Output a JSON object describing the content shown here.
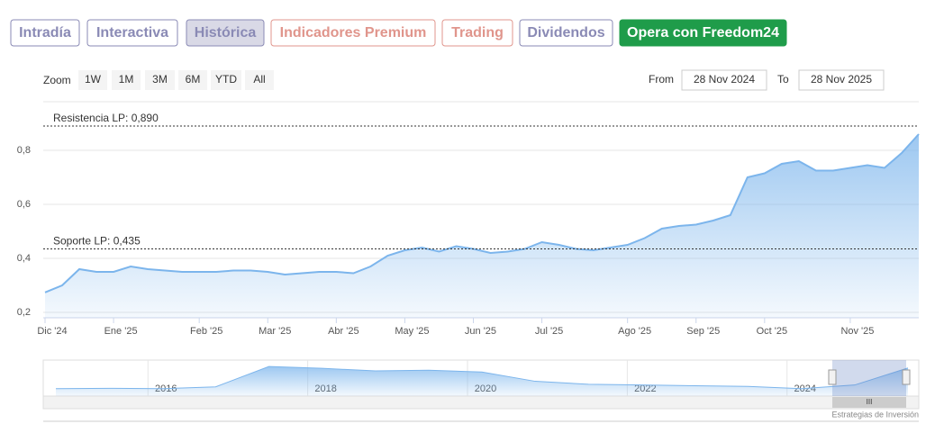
{
  "tabs": [
    "Intradía",
    "Interactiva",
    "Histórica",
    "Indicadores Premium",
    "Trading",
    "Dividendos",
    "Opera con Freedom24"
  ],
  "zoom": {
    "label": "Zoom",
    "buttons": [
      "1W",
      "1M",
      "3M",
      "6M",
      "YTD",
      "All"
    ]
  },
  "range": {
    "from_label": "From",
    "from": "28 Nov 2024",
    "to_label": "To",
    "to": "28 Nov 2025"
  },
  "chart_data": {
    "type": "area",
    "categories": [
      "Dic '24",
      null,
      null,
      null,
      "Ene '25",
      null,
      null,
      null,
      null,
      "Feb '25",
      null,
      null,
      null,
      "Mar '25",
      null,
      null,
      null,
      "Abr '25",
      null,
      null,
      null,
      "May '25",
      null,
      null,
      null,
      "Jun '25",
      null,
      null,
      null,
      "Jul '25",
      null,
      null,
      null,
      null,
      "Ago '25",
      null,
      null,
      null,
      "Sep '25",
      null,
      null,
      null,
      "Oct '25",
      null,
      null,
      null,
      null,
      "Nov '25",
      null,
      null,
      null,
      null
    ],
    "values": [
      0.274,
      0.3,
      0.36,
      0.35,
      0.35,
      0.37,
      0.36,
      0.355,
      0.35,
      0.35,
      0.35,
      0.355,
      0.355,
      0.35,
      0.34,
      0.345,
      0.35,
      0.35,
      0.345,
      0.37,
      0.41,
      0.43,
      0.44,
      0.425,
      0.445,
      0.435,
      0.42,
      0.425,
      0.435,
      0.46,
      0.45,
      0.435,
      0.43,
      0.44,
      0.45,
      0.475,
      0.51,
      0.52,
      0.525,
      0.54,
      0.56,
      0.7,
      0.715,
      0.75,
      0.76,
      0.725,
      0.725,
      0.735,
      0.745,
      0.735,
      0.79,
      0.86
    ],
    "color": "#7cb5ec",
    "ylim": [
      0.18,
      0.98
    ],
    "yticks": [
      {
        "value": 0.2,
        "label": "0,2"
      },
      {
        "value": 0.4,
        "label": "0,4"
      },
      {
        "value": 0.6,
        "label": "0,6"
      },
      {
        "value": 0.8,
        "label": "0,8"
      }
    ],
    "grid": true,
    "annotations": [
      {
        "label": "Resistencia LP: 0,890",
        "value": 0.89
      },
      {
        "label": "Soporte LP: 0,435",
        "value": 0.435
      }
    ],
    "navigator": {
      "labels": [
        null,
        null,
        "2016",
        null,
        null,
        "2018",
        null,
        null,
        "2020",
        null,
        null,
        "2022",
        null,
        null,
        "2024",
        null,
        null
      ],
      "values": [
        0.3,
        0.31,
        0.3,
        0.35,
        0.9,
        0.85,
        0.78,
        0.8,
        0.75,
        0.5,
        0.42,
        0.4,
        0.38,
        0.36,
        0.3,
        0.4,
        0.86
      ],
      "ylim": [
        0.1,
        1.0
      ]
    },
    "credit": "Estrategias de Inversión"
  }
}
